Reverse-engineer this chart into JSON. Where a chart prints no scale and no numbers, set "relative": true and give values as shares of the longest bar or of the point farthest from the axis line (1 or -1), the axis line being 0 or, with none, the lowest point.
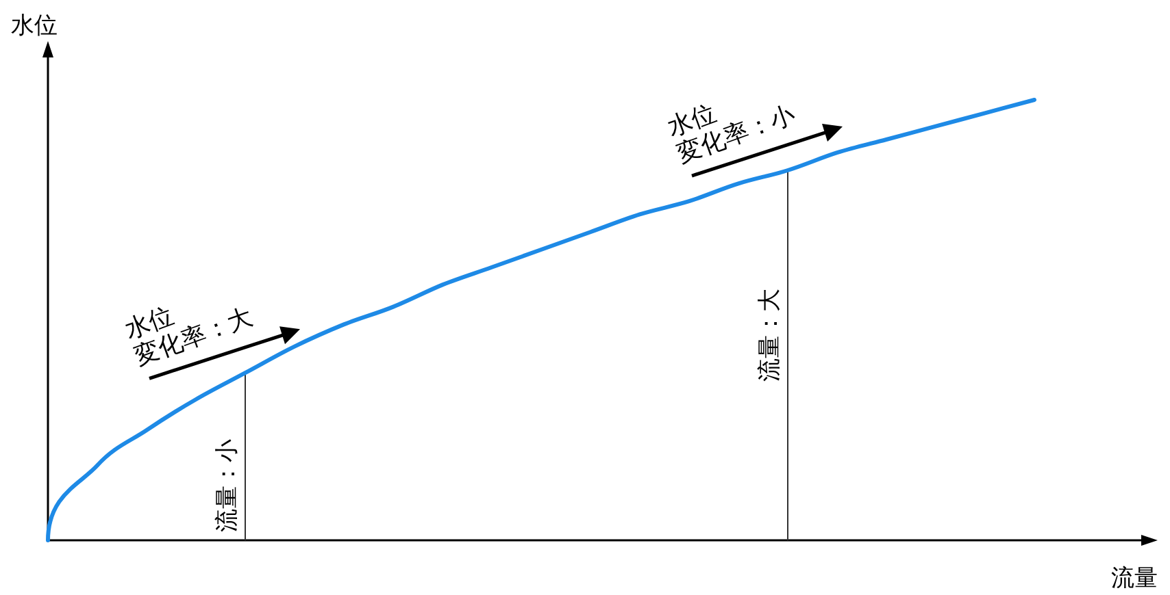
{
  "chart_data": {
    "type": "line",
    "relative": true,
    "xlabel": "流量",
    "ylabel": "水位",
    "categories": [
      null,
      null,
      null,
      null,
      null,
      null,
      null,
      null,
      null,
      null,
      null,
      null,
      null,
      null,
      null,
      null,
      null,
      null,
      null,
      null,
      null,
      null,
      null
    ],
    "series": [
      {
        "color": "#1e8ae6",
        "values": [
          0,
          0.17,
          0.25,
          0.32,
          0.38,
          0.44,
          0.49,
          0.53,
          0.58,
          0.62,
          0.66,
          0.7,
          0.74,
          0.77,
          0.81,
          0.84,
          0.88,
          0.91,
          0.94,
          0.97,
          1,
          null,
          null
        ]
      }
    ],
    "annotations": [
      "水位\n変化率：大",
      "水位\n変化率：小",
      "流量：小",
      "流量：大"
    ],
    "marker": "none",
    "line_style": "solid"
  }
}
